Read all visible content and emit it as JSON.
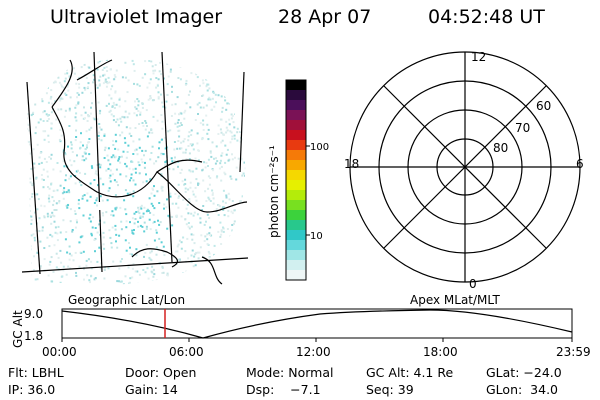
{
  "header": {
    "title": "Ultraviolet Imager",
    "date": "28 Apr 07",
    "time": "04:52:48 UT"
  },
  "colorbar": {
    "unit_label": "photon cm⁻²s⁻¹",
    "ticks": [
      "100",
      "10"
    ],
    "colors": [
      "#000000",
      "#2a0a3c",
      "#4b0f5a",
      "#7a1256",
      "#a0103a",
      "#c8101e",
      "#e83a10",
      "#f57a08",
      "#f8a800",
      "#f5d800",
      "#e6f000",
      "#b4ec0a",
      "#78e020",
      "#3cd23c",
      "#28c88c",
      "#30c8c8",
      "#64d8dc",
      "#a0e6e6",
      "#d2f0f0",
      "#eef6f6"
    ]
  },
  "left_panel": {
    "caption": "Geographic Lat/Lon"
  },
  "polar_plot": {
    "caption": "Apex MLat/MLT",
    "mlt_labels": {
      "top": "12",
      "left": "18",
      "right": "6",
      "bottom": "0"
    },
    "lat_labels": [
      "60",
      "70",
      "80"
    ]
  },
  "altitude_strip": {
    "ylabel": "GC Alt",
    "y_ticks": [
      "9.0",
      "1.8"
    ],
    "x_ticks": [
      "00:00",
      "06:00",
      "12:00",
      "18:00",
      "23:59"
    ],
    "marker_time": "04:52"
  },
  "info": {
    "row1": {
      "flt": "Flt: LBHL",
      "door": "Door: Open",
      "mode": "Mode: Normal",
      "gc_alt": "GC Alt: 4.1 Re",
      "glat": "GLat: −24.0"
    },
    "row2": {
      "ip": "IP: 36.0",
      "gain": "Gain: 14",
      "dsp": "Dsp:    −7.1",
      "seq": "Seq: 39",
      "glon": "GLon:  34.0"
    }
  }
}
